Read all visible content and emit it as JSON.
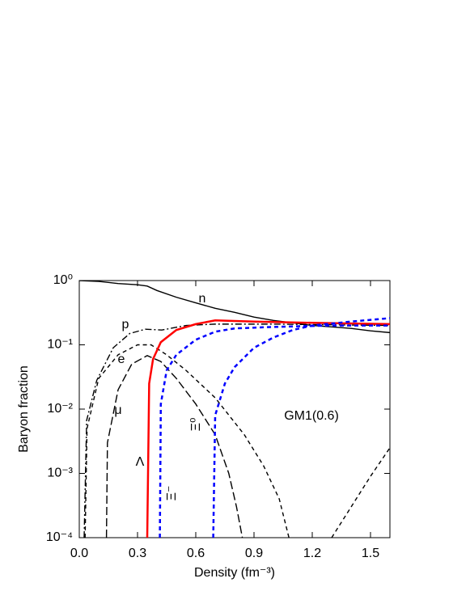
{
  "chart_data": {
    "type": "line",
    "x_label": "Density (fm⁻³)",
    "y_label": "Baryon fraction",
    "annotation": "GM1(0.6)",
    "xlim": [
      0,
      1.6
    ],
    "ylim": [
      0.0001,
      1
    ],
    "y_scale": "log",
    "xticks": [
      {
        "value": 0,
        "label": "0.0"
      },
      0.3,
      0.6,
      0.9,
      1.2,
      1.5
    ],
    "yticks": [
      {
        "value": 0.0001,
        "label": "10⁻⁴"
      },
      {
        "value": 0.001,
        "label": "10⁻³"
      },
      {
        "value": 0.01,
        "label": "10⁻²"
      },
      {
        "value": 0.1,
        "label": "10⁻¹"
      },
      {
        "value": 1,
        "label": "10⁰"
      }
    ],
    "series": [
      {
        "name": "n",
        "color": "#000000",
        "style": "solid",
        "x": [
          0,
          0.1,
          0.2,
          0.3,
          0.35,
          0.4,
          0.5,
          0.6,
          0.7,
          0.8,
          0.9,
          1.0,
          1.1,
          1.2,
          1.3,
          1.4,
          1.5,
          1.6
        ],
        "values": [
          1.0,
          0.97,
          0.9,
          0.86,
          0.82,
          0.7,
          0.55,
          0.45,
          0.37,
          0.32,
          0.27,
          0.24,
          0.22,
          0.2,
          0.19,
          0.18,
          0.165,
          0.155
        ]
      },
      {
        "name": "p",
        "color": "#000000",
        "style": "dashdot",
        "x": [
          0.025,
          0.038,
          0.09,
          0.175,
          0.26,
          0.34,
          0.425,
          0.55,
          0.7,
          1.0,
          1.3,
          1.6
        ],
        "values": [
          0.0001,
          0.0067,
          0.028,
          0.09,
          0.15,
          0.175,
          0.17,
          0.2,
          0.21,
          0.21,
          0.205,
          0.2
        ]
      },
      {
        "name": "e",
        "color": "#000000",
        "style": "dashed",
        "x": [
          0.03,
          0.04,
          0.1,
          0.2,
          0.3,
          0.37,
          0.45,
          0.55,
          0.7,
          0.85,
          0.95,
          1.03,
          1.08,
          1.2,
          1.3,
          1.4,
          1.5,
          1.6
        ],
        "values": [
          0.0001,
          0.005,
          0.03,
          0.07,
          0.1,
          0.1,
          0.07,
          0.04,
          0.015,
          0.004,
          0.0013,
          0.0004,
          0.0001,
          null,
          0.0001,
          0.0003,
          0.0009,
          0.0025
        ]
      },
      {
        "name": "μ",
        "color": "#000000",
        "style": "longdash",
        "x": [
          0.14,
          0.145,
          0.2,
          0.27,
          0.35,
          0.42,
          0.5,
          0.6,
          0.7,
          0.77,
          0.81,
          0.84
        ],
        "values": [
          0.0001,
          0.003,
          0.02,
          0.05,
          0.068,
          0.055,
          0.03,
          0.012,
          0.004,
          0.001,
          0.0003,
          0.0001
        ]
      },
      {
        "name": "Λ",
        "color": "#ff0000",
        "style": "solid",
        "x": [
          0.35,
          0.36,
          0.38,
          0.42,
          0.5,
          0.6,
          0.7,
          0.9,
          1.2,
          1.6
        ],
        "values": [
          0.0001,
          0.025,
          0.06,
          0.11,
          0.17,
          0.21,
          0.24,
          0.23,
          0.22,
          0.21
        ]
      },
      {
        "name": "Ξ⁻",
        "color": "#0000ff",
        "style": "dashed",
        "x": [
          0.415,
          0.42,
          0.45,
          0.5,
          0.6,
          0.7,
          0.8,
          1.0,
          1.3,
          1.6
        ],
        "values": [
          0.0001,
          0.012,
          0.04,
          0.07,
          0.12,
          0.16,
          0.18,
          0.19,
          0.2,
          0.2
        ]
      },
      {
        "name": "Ξ⁰",
        "color": "#0000ff",
        "style": "dashed",
        "x": [
          0.69,
          0.7,
          0.75,
          0.8,
          0.9,
          1.0,
          1.1,
          1.2,
          1.4,
          1.6
        ],
        "values": [
          0.0001,
          0.008,
          0.025,
          0.045,
          0.09,
          0.13,
          0.17,
          0.2,
          0.23,
          0.26
        ]
      }
    ]
  }
}
